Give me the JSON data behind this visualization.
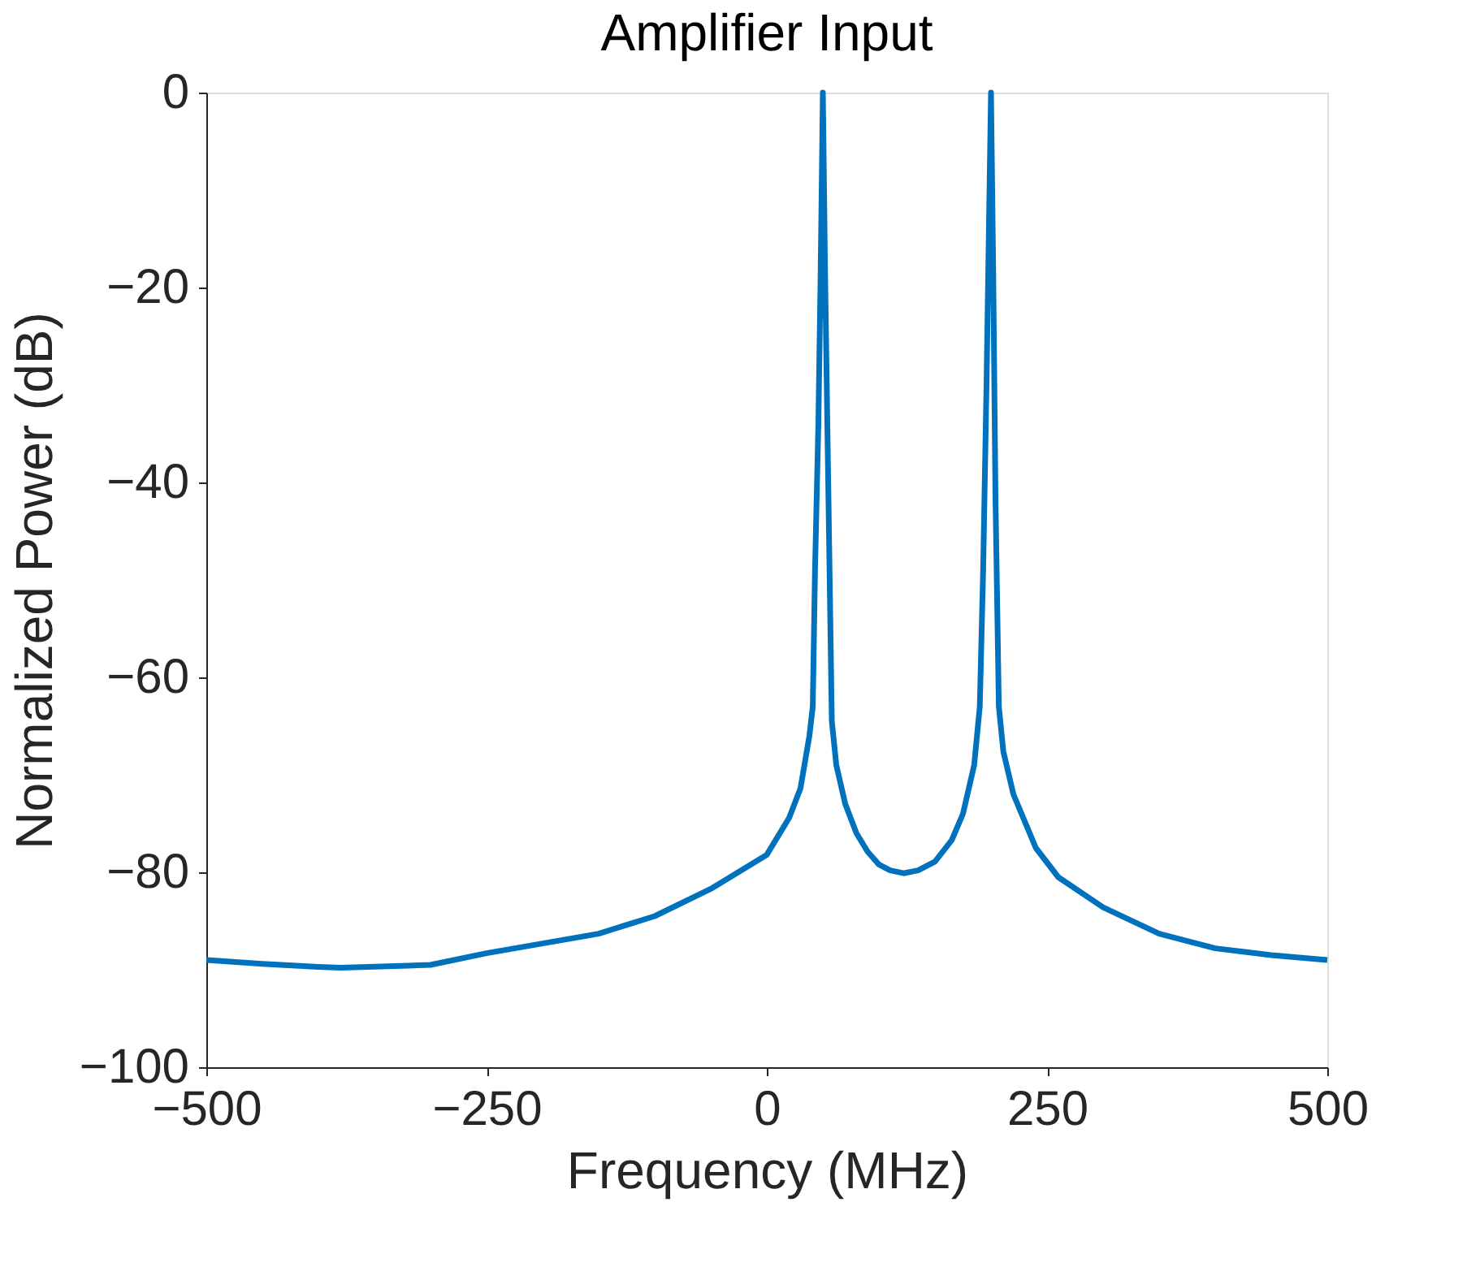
{
  "chart_data": {
    "type": "line",
    "title": "Amplifier Input",
    "xlabel": "Frequency (MHz)",
    "ylabel": "Normalized Power (dB)",
    "x": [
      -500,
      -450,
      -400,
      -380,
      -300,
      -250,
      -200,
      -150,
      -100,
      -50,
      0,
      20,
      30,
      38,
      41,
      43,
      46,
      48,
      50,
      52,
      55,
      58,
      62,
      70,
      80,
      90,
      100,
      110,
      122,
      135,
      150,
      165,
      175,
      185,
      190,
      193,
      196,
      198,
      200,
      202,
      204,
      207,
      211,
      220,
      240,
      260,
      300,
      350,
      400,
      450,
      500
    ],
    "series": [
      {
        "color": "#0072bd",
        "values": [
          -89.0,
          -89.4,
          -89.7,
          -89.8,
          -89.5,
          -88.3,
          -87.3,
          -86.3,
          -84.5,
          -81.7,
          -78.2,
          -74.4,
          -71.4,
          -66,
          -63,
          -49,
          -34,
          -18.7,
          0,
          -18.7,
          -41.6,
          -64.5,
          -69,
          -73,
          -76,
          -77.9,
          -79.2,
          -79.8,
          -80.1,
          -79.8,
          -78.9,
          -76.7,
          -74,
          -69,
          -63,
          -49,
          -30,
          -15,
          0,
          -18.7,
          -41.6,
          -63,
          -67.6,
          -72,
          -77.5,
          -80.5,
          -83.6,
          -86.3,
          -87.8,
          -88.5,
          -89.0
        ]
      }
    ],
    "xlim": [
      -500,
      500
    ],
    "xticks": [
      -500,
      -250,
      0,
      250,
      500
    ],
    "ylim": [
      -100,
      0
    ],
    "yticks": [
      -100,
      -80,
      -60,
      -40,
      -20,
      0
    ],
    "grid": false,
    "line_style": "solid",
    "marker": "none"
  }
}
